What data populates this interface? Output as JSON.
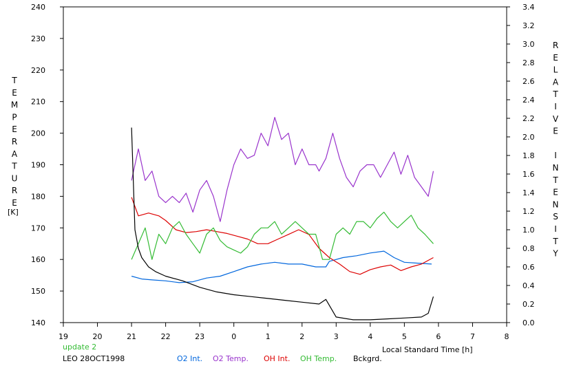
{
  "chart_data": {
    "type": "line",
    "xlabel": "Local Standard Time [h]",
    "ylabel_left": "TEMPERATURE",
    "ylabel_left_unit": "[K]",
    "ylabel_right": "RELATIVE INTENSITY",
    "x_ticks": [
      "19",
      "20",
      "21",
      "22",
      "23",
      "0",
      "1",
      "2",
      "3",
      "4",
      "5",
      "6",
      "7",
      "8"
    ],
    "xlim": [
      19,
      32
    ],
    "ylim_left": [
      140,
      240
    ],
    "ylim_right": [
      0.0,
      3.4
    ],
    "y_left_ticks": [
      140,
      150,
      160,
      170,
      180,
      190,
      200,
      210,
      220,
      230,
      240
    ],
    "y_right_ticks": [
      "0.0",
      "0.2",
      "0.4",
      "0.6",
      "0.8",
      "1.0",
      "1.2",
      "1.4",
      "1.6",
      "1.8",
      "2.0",
      "2.2",
      "2.4",
      "2.6",
      "2.8",
      "3.0",
      "3.2",
      "3.4"
    ],
    "grid": false,
    "legend_placement": "bottom",
    "series": [
      {
        "name": "O2 Int.",
        "axis": "right",
        "color": "#0066dd",
        "x": [
          21.0,
          21.3,
          21.6,
          22.0,
          22.4,
          22.8,
          23.2,
          23.6,
          24.0,
          24.4,
          24.8,
          25.2,
          25.6,
          26.0,
          26.4,
          26.7,
          26.8,
          27.2,
          27.6,
          28.0,
          28.4,
          28.7,
          29.0,
          29.4,
          29.8
        ],
        "y": [
          0.5,
          0.47,
          0.46,
          0.45,
          0.43,
          0.44,
          0.48,
          0.5,
          0.55,
          0.6,
          0.63,
          0.65,
          0.63,
          0.63,
          0.6,
          0.6,
          0.66,
          0.7,
          0.72,
          0.75,
          0.77,
          0.7,
          0.65,
          0.64,
          0.63
        ]
      },
      {
        "name": "O2 Temp.",
        "axis": "left",
        "color": "#9933cc",
        "x": [
          21.0,
          21.2,
          21.4,
          21.6,
          21.8,
          22.0,
          22.2,
          22.4,
          22.6,
          22.8,
          23.0,
          23.2,
          23.4,
          23.6,
          23.8,
          24.0,
          24.2,
          24.4,
          24.6,
          24.8,
          25.0,
          25.2,
          25.4,
          25.6,
          25.8,
          26.0,
          26.2,
          26.4,
          26.5,
          26.7,
          26.9,
          27.1,
          27.3,
          27.5,
          27.7,
          27.9,
          28.1,
          28.3,
          28.5,
          28.7,
          28.9,
          29.1,
          29.3,
          29.5,
          29.7,
          29.85
        ],
        "y": [
          185,
          195,
          185,
          188,
          180,
          178,
          180,
          178,
          181,
          175,
          182,
          185,
          180,
          172,
          182,
          190,
          195,
          192,
          193,
          200,
          196,
          205,
          198,
          200,
          190,
          195,
          190,
          190,
          188,
          192,
          200,
          192,
          186,
          183,
          188,
          190,
          190,
          186,
          190,
          194,
          187,
          193,
          186,
          183,
          180,
          188
        ]
      },
      {
        "name": "OH Int.",
        "axis": "right",
        "color": "#dd0000",
        "x": [
          21.0,
          21.2,
          21.5,
          21.8,
          22.0,
          22.3,
          22.6,
          22.9,
          23.2,
          23.5,
          23.8,
          24.1,
          24.4,
          24.7,
          25.0,
          25.3,
          25.6,
          25.9,
          26.2,
          26.5,
          26.8,
          27.1,
          27.4,
          27.7,
          28.0,
          28.3,
          28.6,
          28.9,
          29.2,
          29.5,
          29.85
        ],
        "y": [
          1.35,
          1.15,
          1.18,
          1.15,
          1.1,
          1.0,
          0.97,
          0.98,
          1.0,
          0.98,
          0.96,
          0.93,
          0.9,
          0.85,
          0.85,
          0.9,
          0.95,
          1.0,
          0.95,
          0.8,
          0.7,
          0.63,
          0.55,
          0.52,
          0.57,
          0.6,
          0.62,
          0.56,
          0.6,
          0.63,
          0.7
        ]
      },
      {
        "name": "OH Temp.",
        "axis": "left",
        "color": "#33bb33",
        "x": [
          21.0,
          21.2,
          21.4,
          21.6,
          21.8,
          22.0,
          22.2,
          22.4,
          22.6,
          22.8,
          23.0,
          23.2,
          23.4,
          23.6,
          23.8,
          24.0,
          24.2,
          24.4,
          24.6,
          24.8,
          25.0,
          25.2,
          25.4,
          25.6,
          25.8,
          26.0,
          26.2,
          26.4,
          26.6,
          26.8,
          27.0,
          27.2,
          27.4,
          27.6,
          27.8,
          28.0,
          28.2,
          28.4,
          28.6,
          28.8,
          29.0,
          29.2,
          29.4,
          29.6,
          29.85
        ],
        "y": [
          160,
          165,
          170,
          160,
          168,
          165,
          170,
          172,
          168,
          165,
          162,
          168,
          170,
          166,
          164,
          163,
          162,
          164,
          168,
          170,
          170,
          172,
          168,
          170,
          172,
          170,
          168,
          168,
          160,
          160,
          168,
          170,
          168,
          172,
          172,
          170,
          173,
          175,
          172,
          170,
          172,
          174,
          170,
          168,
          165
        ]
      },
      {
        "name": "Bckgrd.",
        "axis": "right",
        "color": "#000000",
        "x": [
          21.0,
          21.1,
          21.2,
          21.3,
          21.5,
          21.7,
          22.0,
          22.5,
          23.0,
          23.5,
          24.0,
          24.5,
          25.0,
          25.5,
          26.0,
          26.5,
          26.7,
          27.0,
          27.5,
          28.0,
          28.5,
          29.0,
          29.5,
          29.7,
          29.85
        ],
        "y": [
          2.1,
          1.0,
          0.8,
          0.7,
          0.6,
          0.55,
          0.5,
          0.45,
          0.38,
          0.33,
          0.3,
          0.28,
          0.26,
          0.24,
          0.22,
          0.2,
          0.25,
          0.06,
          0.03,
          0.03,
          0.04,
          0.05,
          0.06,
          0.1,
          0.28
        ]
      }
    ]
  },
  "footer": {
    "update": "update 2",
    "station": "LEO 28OCT1998",
    "legend": [
      "O2 Int.",
      "O2 Temp.",
      "OH Int.",
      "OH Temp.",
      "Bckgrd."
    ]
  },
  "colors": {
    "update": "#33bb33",
    "station": "#000000",
    "axis": "#000000",
    "background": "#ffffff"
  }
}
